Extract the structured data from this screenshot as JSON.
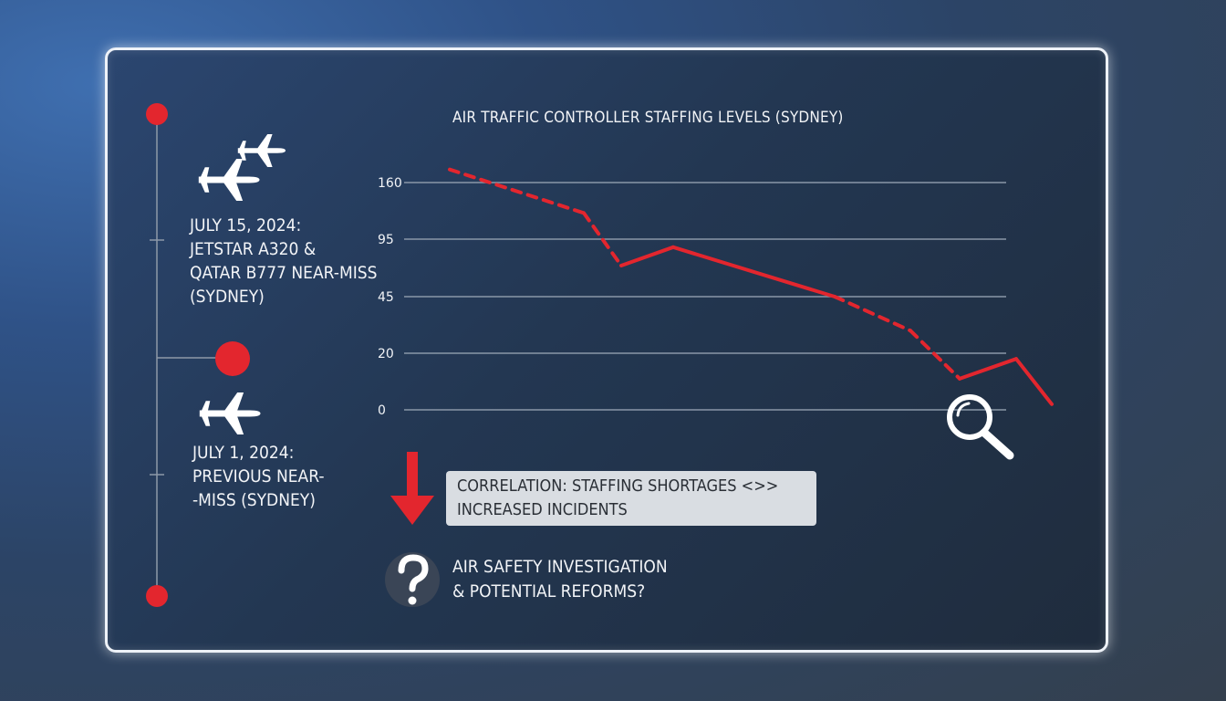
{
  "events": [
    {
      "label_lines": [
        "JULY 15, 2024:",
        "JETSTAR A320 &",
        "QATAR B777 NEAR-MISS",
        "(SYDNEY)"
      ]
    },
    {
      "label_lines": [
        "JULY 1, 2024:",
        "PREVIOUS NEAR-",
        "-MISS (SYDNEY)"
      ]
    }
  ],
  "chart": {
    "title": "AIR TRAFFIC CONTROLLER STAFFING LEVELS (SYDNEY)",
    "y_ticks": [
      "160",
      "95",
      "45",
      "20",
      "0"
    ]
  },
  "correlation": {
    "lines": [
      "CORRELATION: STAFFING SHORTAGES <>>",
      "INCREASED INCIDENTS"
    ]
  },
  "question": {
    "lines": [
      "AIR SAFETY INVESTIGATION",
      "& POTENTIAL REFORMS?"
    ]
  },
  "colors": {
    "accent_red": "#e3262e",
    "text": "#f2f4f7",
    "box_bg": "#d9dde2"
  },
  "chart_data": {
    "type": "line",
    "title": "AIR TRAFFIC CONTROLLER STAFFING LEVELS (SYDNEY)",
    "xlabel": "",
    "ylabel": "",
    "y_tick_labels": [
      "0",
      "20",
      "45",
      "95",
      "160"
    ],
    "scale": "categorical ticks (non-linear spacing)",
    "series": [
      {
        "points": [
          {
            "x": 0,
            "y": 175,
            "style": "dashed"
          },
          {
            "x": 1,
            "y": 125,
            "style": "dashed"
          },
          {
            "x": 2,
            "y": 72,
            "style": "solid"
          },
          {
            "x": 3,
            "y": 88,
            "style": "solid"
          },
          {
            "x": 4,
            "y": 45,
            "style": "dashed"
          },
          {
            "x": 5,
            "y": 30,
            "style": "dashed"
          },
          {
            "x": 6,
            "y": 11,
            "style": "solid"
          },
          {
            "x": 7,
            "y": 18,
            "style": "solid"
          },
          {
            "x": 8,
            "y": 2,
            "style": "dashed"
          }
        ]
      }
    ]
  }
}
